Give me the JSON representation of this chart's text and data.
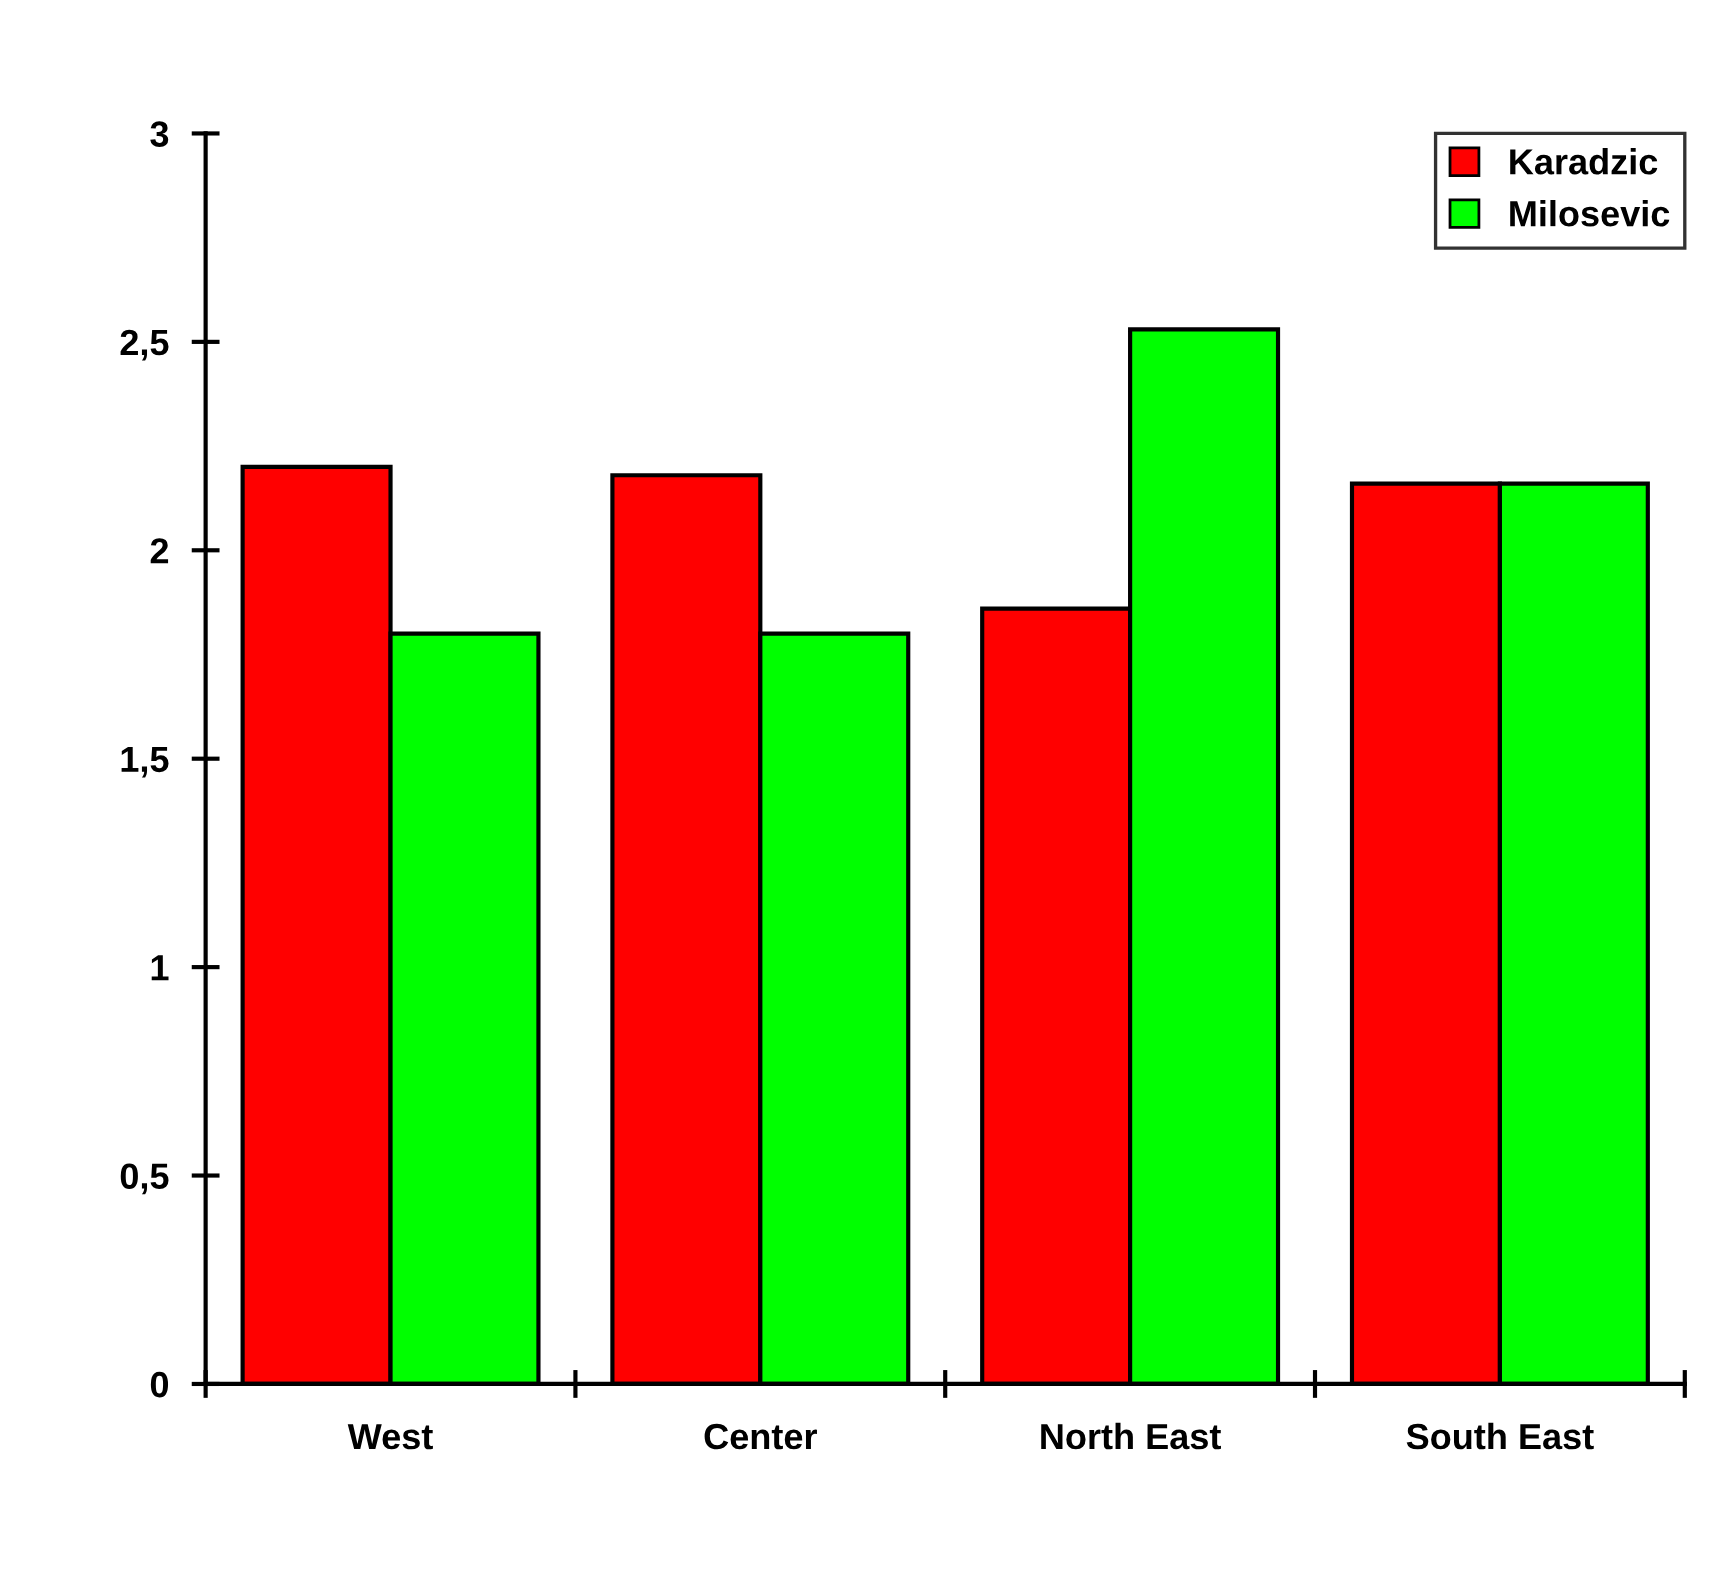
{
  "chart_data": {
    "type": "bar",
    "categories": [
      "West",
      "Center",
      "North East",
      "South East"
    ],
    "series": [
      {
        "name": "Karadzic",
        "color": "#ff0000",
        "values": [
          2.2,
          2.18,
          1.86,
          2.16
        ]
      },
      {
        "name": "Milosevic",
        "color": "#00ff00",
        "values": [
          1.8,
          1.8,
          2.53,
          2.16
        ]
      }
    ],
    "ylim": [
      0,
      3
    ],
    "yticks": [
      0,
      {
        "value": 0.5,
        "label": "0,5"
      },
      1,
      {
        "value": 1.5,
        "label": "1,5"
      },
      2,
      {
        "value": 2.5,
        "label": "2,5"
      },
      3
    ],
    "grid": false,
    "legend": "top right"
  }
}
